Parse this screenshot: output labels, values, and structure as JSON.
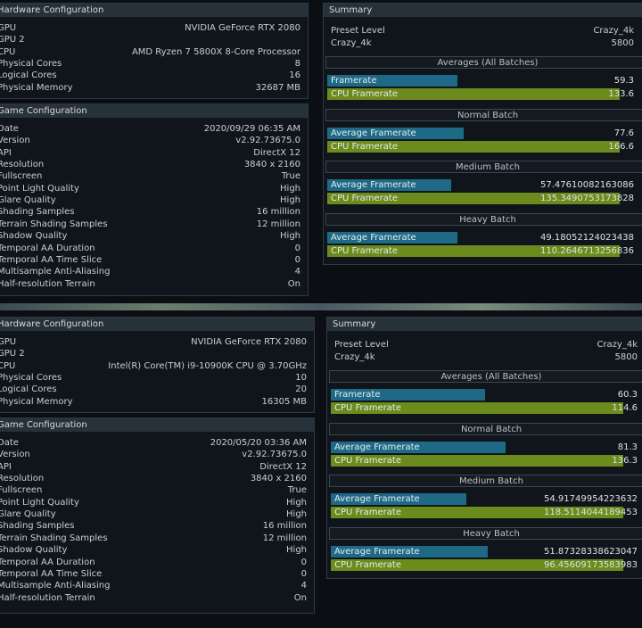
{
  "bar_colors": {
    "Framerate": "#1e6a86",
    "CPU": "#6b8b1c"
  },
  "panels": [
    {
      "hardware": {
        "title": "Hardware Configuration",
        "rows": [
          [
            "GPU",
            "NVIDIA GeForce RTX 2080"
          ],
          [
            "GPU 2",
            ""
          ],
          [
            "CPU",
            "AMD Ryzen 7 5800X 8-Core Processor"
          ],
          [
            "Physical Cores",
            "8"
          ],
          [
            "Logical Cores",
            "16"
          ],
          [
            "Physical Memory",
            "32687 MB"
          ]
        ]
      },
      "game": {
        "title": "Game Configuration",
        "rows": [
          [
            "Date",
            "2020/09/29 06:35 AM"
          ],
          [
            "Version",
            "v2.92.73675.0"
          ],
          [
            "API",
            "DirectX 12"
          ],
          [
            "Resolution",
            "3840 x 2160"
          ],
          [
            "Fullscreen",
            "True"
          ],
          [
            "Point Light Quality",
            "High"
          ],
          [
            "Glare Quality",
            "High"
          ],
          [
            "Shading Samples",
            "16 million"
          ],
          [
            "Terrain Shading Samples",
            "12 million"
          ],
          [
            "Shadow Quality",
            "High"
          ],
          [
            "Temporal AA Duration",
            "0"
          ],
          [
            "Temporal AA Time Slice",
            "0"
          ],
          [
            "Multisample Anti-Aliasing",
            "4"
          ],
          [
            "Half-resolution Terrain",
            "On"
          ]
        ]
      },
      "summary": {
        "title": "Summary",
        "rows": [
          [
            "Preset Level",
            "Crazy_4k"
          ],
          [
            "Crazy_4k",
            "5800"
          ]
        ],
        "groups": [
          {
            "title": "Averages (All Batches)",
            "bars": [
              {
                "label": "Framerate",
                "kind": "Framerate",
                "value": 59.3
              },
              {
                "label": "CPU Framerate",
                "kind": "CPU",
                "value": 133.6
              }
            ]
          },
          {
            "title": "Normal Batch",
            "bars": [
              {
                "label": "Average Framerate",
                "kind": "Framerate",
                "value": 77.6
              },
              {
                "label": "CPU Framerate",
                "kind": "CPU",
                "value": 166.6
              }
            ]
          },
          {
            "title": "Medium Batch",
            "bars": [
              {
                "label": "Average Framerate",
                "kind": "Framerate",
                "value": 57.47610082163086
              },
              {
                "label": "CPU Framerate",
                "kind": "CPU",
                "value": 135.3490753173828
              }
            ]
          },
          {
            "title": "Heavy Batch",
            "bars": [
              {
                "label": "Average Framerate",
                "kind": "Framerate",
                "value": 49.18052124023438
              },
              {
                "label": "CPU Framerate",
                "kind": "CPU",
                "value": 110.2646713256836
              }
            ]
          }
        ]
      }
    },
    {
      "hardware": {
        "title": "Hardware Configuration",
        "rows": [
          [
            "GPU",
            "NVIDIA GeForce RTX 2080"
          ],
          [
            "GPU 2",
            ""
          ],
          [
            "CPU",
            "Intel(R) Core(TM) i9-10900K CPU @ 3.70GHz"
          ],
          [
            "Physical Cores",
            "10"
          ],
          [
            "Logical Cores",
            "20"
          ],
          [
            "Physical Memory",
            "16305 MB"
          ]
        ]
      },
      "game": {
        "title": "Game Configuration",
        "rows": [
          [
            "Date",
            "2020/05/20 03:36 AM"
          ],
          [
            "Version",
            "v2.92.73675.0"
          ],
          [
            "API",
            "DirectX 12"
          ],
          [
            "Resolution",
            "3840 x 2160"
          ],
          [
            "Fullscreen",
            "True"
          ],
          [
            "Point Light Quality",
            "High"
          ],
          [
            "Glare Quality",
            "High"
          ],
          [
            "Shading Samples",
            "16 million"
          ],
          [
            "Terrain Shading Samples",
            "12 million"
          ],
          [
            "Shadow Quality",
            "High"
          ],
          [
            "Temporal AA Duration",
            "0"
          ],
          [
            "Temporal AA Time Slice",
            "0"
          ],
          [
            "Multisample Anti-Aliasing",
            "4"
          ],
          [
            "Half-resolution Terrain",
            "On"
          ]
        ]
      },
      "summary": {
        "title": "Summary",
        "rows": [
          [
            "Preset Level",
            "Crazy_4k"
          ],
          [
            "Crazy_4k",
            "5800"
          ]
        ],
        "groups": [
          {
            "title": "Averages (All Batches)",
            "bars": [
              {
                "label": "Framerate",
                "kind": "Framerate",
                "value": 60.3
              },
              {
                "label": "CPU Framerate",
                "kind": "CPU",
                "value": 114.6
              }
            ]
          },
          {
            "title": "Normal Batch",
            "bars": [
              {
                "label": "Average Framerate",
                "kind": "Framerate",
                "value": 81.3
              },
              {
                "label": "CPU Framerate",
                "kind": "CPU",
                "value": 136.3
              }
            ]
          },
          {
            "title": "Medium Batch",
            "bars": [
              {
                "label": "Average Framerate",
                "kind": "Framerate",
                "value": 54.91749954223632
              },
              {
                "label": "CPU Framerate",
                "kind": "CPU",
                "value": 118.5114044189453
              }
            ]
          },
          {
            "title": "Heavy Batch",
            "bars": [
              {
                "label": "Average Framerate",
                "kind": "Framerate",
                "value": 51.87328338623047
              },
              {
                "label": "CPU Framerate",
                "kind": "CPU",
                "value": 96.45609173583983
              }
            ]
          }
        ]
      }
    }
  ]
}
